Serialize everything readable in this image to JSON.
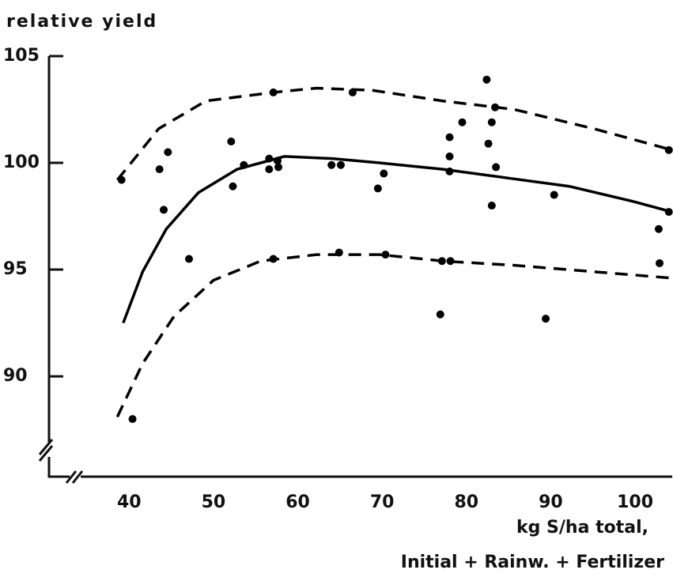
{
  "chart_data": {
    "type": "scatter",
    "ylabel": "relative yield",
    "xlabel": [
      "kg S/ha  total,",
      "Initial + Rainw. + Fertilizer"
    ],
    "xlim": [
      30.5,
      104.4
    ],
    "ylim": [
      85.3,
      105
    ],
    "xticks": [
      40,
      50,
      60,
      70,
      80,
      90,
      100
    ],
    "yticks": [
      90,
      95,
      100,
      105
    ],
    "color": "#000000",
    "x": [
      39.1,
      40.4,
      43.6,
      44.1,
      44.6,
      47.1,
      52.1,
      52.3,
      53.6,
      56.6,
      56.6,
      57.1,
      57.1,
      57.6,
      57.7,
      64.0,
      65.1,
      64.9,
      66.5,
      69.5,
      70.2,
      70.4,
      76.9,
      77.1,
      78.1,
      78.0,
      78.0,
      78.0,
      79.5,
      82.4,
      82.6,
      83.0,
      83.4,
      83.5,
      83.0,
      89.4,
      90.4,
      102.8,
      102.9,
      104.0,
      104.0
    ],
    "values": [
      99.2,
      88.0,
      99.7,
      97.8,
      100.5,
      95.5,
      101.0,
      98.9,
      99.9,
      100.2,
      99.7,
      103.3,
      95.5,
      100.1,
      99.8,
      99.9,
      99.9,
      95.8,
      103.3,
      98.8,
      99.5,
      95.7,
      92.9,
      95.4,
      95.4,
      101.2,
      100.3,
      99.6,
      101.9,
      103.9,
      100.9,
      101.9,
      102.6,
      99.8,
      98.0,
      92.7,
      98.5,
      96.9,
      95.3,
      100.6,
      97.7
    ],
    "curves": [
      {
        "style": "solid",
        "x": [
          39.3,
          41.6,
          44.4,
          48.2,
          52.8,
          58.4,
          64.1,
          69.7,
          77.2,
          84.7,
          92.2,
          99.7,
          104.4
        ],
        "values": [
          92.5,
          94.9,
          96.9,
          98.6,
          99.7,
          100.3,
          100.2,
          100.0,
          99.7,
          99.3,
          98.9,
          98.2,
          97.7
        ]
      },
      {
        "style": "dashed",
        "x": [
          38.6,
          43.5,
          49.1,
          57.1,
          62.2,
          68.8,
          77.2,
          85.7,
          95.1,
          104.4
        ],
        "values": [
          99.2,
          101.6,
          102.9,
          103.3,
          103.5,
          103.4,
          102.9,
          102.5,
          101.6,
          100.6
        ]
      },
      {
        "style": "dashed",
        "x": [
          38.6,
          41.6,
          45.3,
          50.0,
          55.6,
          62.2,
          69.7,
          77.2,
          85.7,
          95.1,
          104.4
        ],
        "values": [
          88.1,
          90.6,
          92.8,
          94.5,
          95.4,
          95.7,
          95.7,
          95.4,
          95.2,
          94.9,
          94.6
        ]
      }
    ]
  }
}
